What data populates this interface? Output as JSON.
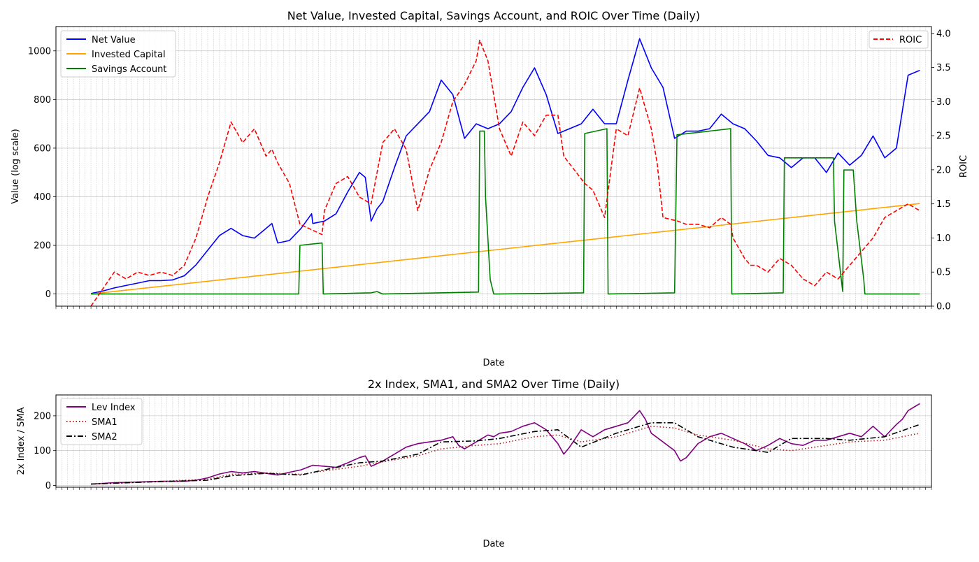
{
  "chart_data": [
    {
      "type": "line",
      "title": "Net Value, Invested Capital, Savings Account, and ROIC Over Time (Daily)",
      "xlabel": "Date",
      "ylabel": "Value (log scale)",
      "ylabel_right": "ROIC",
      "xlim": [
        1947,
        2022
      ],
      "ylim": [
        -50,
        1100
      ],
      "ylim_right": [
        0,
        4.1
      ],
      "yticks": [
        0,
        200,
        400,
        600,
        800,
        1000
      ],
      "yticks_right": [
        0.0,
        0.5,
        1.0,
        1.5,
        2.0,
        2.5,
        3.0,
        3.5,
        4.0
      ],
      "ytick_labels_right": [
        "0.0",
        "0.5",
        "1.0",
        "1.5",
        "2.0",
        "2.5",
        "3.0",
        "3.5",
        "4.0"
      ],
      "grid": true,
      "legend_left_placement": "upper-left",
      "legend_right_placement": "upper-right",
      "series": [
        {
          "name": "Net Value",
          "axis": "left",
          "color": "#0000ff",
          "style": "solid",
          "x": [
            1950,
            1951,
            1952,
            1953,
            1954,
            1955,
            1956,
            1957,
            1958,
            1959,
            1960,
            1961,
            1962,
            1963,
            1964,
            1965,
            1965.5,
            1966,
            1967,
            1968,
            1968.9,
            1969,
            1970,
            1971,
            1972,
            1973,
            1973.5,
            1974,
            1974.5,
            1975,
            1976,
            1977,
            1978,
            1979,
            1980,
            1981,
            1982,
            1983,
            1984,
            1985,
            1986,
            1987,
            1988,
            1989,
            1990,
            1991,
            1992,
            1993,
            1994,
            1995,
            1996,
            1997,
            1998,
            1999,
            2000,
            2001,
            2002,
            2003,
            2004,
            2005,
            2006,
            2007,
            2008,
            2009,
            2010,
            2011,
            2012,
            2013,
            2014,
            2015,
            2016,
            2017,
            2018,
            2019,
            2020,
            2021
          ],
          "y": [
            2,
            12,
            25,
            35,
            45,
            55,
            55,
            58,
            75,
            120,
            180,
            240,
            270,
            240,
            230,
            270,
            290,
            210,
            220,
            270,
            330,
            290,
            300,
            330,
            420,
            500,
            480,
            300,
            350,
            380,
            520,
            650,
            700,
            750,
            880,
            820,
            640,
            700,
            680,
            700,
            750,
            850,
            930,
            820,
            660,
            680,
            700,
            760,
            700,
            700,
            880,
            1050,
            930,
            850,
            640,
            670,
            670,
            680,
            740,
            700,
            680,
            630,
            570,
            560,
            520,
            560,
            560,
            500,
            580,
            530,
            570,
            650,
            560,
            600,
            900,
            920
          ]
        },
        {
          "name": "Invested Capital",
          "axis": "left",
          "color": "#ffa500",
          "style": "solid",
          "x": [
            1950,
            2021
          ],
          "y": [
            0,
            372
          ]
        },
        {
          "name": "Savings Account",
          "axis": "left",
          "color": "#008000",
          "style": "solid",
          "x": [
            1950,
            1967.8,
            1967.9,
            1969.8,
            1969.9,
            1974,
            1974.5,
            1975,
            1983.2,
            1983.3,
            1983.7,
            1983.8,
            1984.2,
            1984.5,
            1985,
            1992.2,
            1992.3,
            1994.2,
            1994.3,
            2000,
            2000.2,
            2004.8,
            2004.9,
            2009.3,
            2009.4,
            2013.6,
            2013.7,
            2014.4,
            2014.5,
            2015.3,
            2015.6,
            2016.2,
            2016.3,
            2016.7,
            2016.8,
            2017.2,
            2017.5,
            2021
          ],
          "y": [
            0,
            0,
            200,
            210,
            0,
            5,
            10,
            0,
            8,
            670,
            670,
            400,
            60,
            0,
            0,
            5,
            660,
            680,
            0,
            5,
            655,
            680,
            0,
            5,
            560,
            560,
            300,
            10,
            510,
            510,
            300,
            60,
            0,
            0,
            0,
            0,
            0,
            0
          ]
        },
        {
          "name": "ROIC",
          "axis": "right",
          "color": "#ff0000",
          "style": "dashed",
          "x": [
            1950,
            1951,
            1952,
            1953,
            1954,
            1955,
            1956,
            1957,
            1958,
            1959,
            1960,
            1961,
            1962,
            1963,
            1964,
            1965,
            1965.5,
            1966,
            1967,
            1967.9,
            1969.8,
            1970,
            1971,
            1972,
            1973,
            1974,
            1975,
            1976,
            1977,
            1978,
            1979,
            1980,
            1980.5,
            1981,
            1982,
            1983,
            1983.3,
            1984,
            1985,
            1986,
            1987,
            1988,
            1989,
            1990,
            1990.5,
            1992.3,
            1993,
            1994,
            1995,
            1996,
            1997,
            1998,
            1998.5,
            1999,
            2000.2,
            2001,
            2002,
            2003,
            2004,
            2004.8,
            2005,
            2006,
            2006.5,
            2007,
            2008,
            2009,
            2010,
            2011,
            2012,
            2013,
            2014,
            2015,
            2016,
            2017,
            2018,
            2019,
            2020,
            2021
          ],
          "y": [
            0.0,
            0.25,
            0.5,
            0.4,
            0.5,
            0.45,
            0.5,
            0.45,
            0.6,
            1.0,
            1.6,
            2.1,
            2.7,
            2.4,
            2.6,
            2.2,
            2.3,
            2.1,
            1.8,
            1.2,
            1.05,
            1.4,
            1.8,
            1.9,
            1.6,
            1.5,
            2.4,
            2.6,
            2.3,
            1.4,
            2.0,
            2.4,
            2.7,
            3.0,
            3.25,
            3.6,
            3.9,
            3.6,
            2.6,
            2.2,
            2.7,
            2.5,
            2.8,
            2.8,
            2.2,
            1.8,
            1.7,
            1.3,
            2.6,
            2.5,
            3.2,
            2.6,
            2.1,
            1.3,
            1.25,
            1.2,
            1.2,
            1.15,
            1.3,
            1.2,
            1.0,
            0.7,
            0.6,
            0.6,
            0.5,
            0.7,
            0.6,
            0.4,
            0.3,
            0.5,
            0.4,
            0.6,
            0.8,
            1.0,
            1.3,
            1.4,
            1.5,
            1.4
          ]
        }
      ]
    },
    {
      "type": "line",
      "title": "2x Index, SMA1, and SMA2 Over Time (Daily)",
      "xlabel": "Date",
      "ylabel": "2x Index / SMA",
      "xlim": [
        1947,
        2022
      ],
      "ylim": [
        -5,
        260
      ],
      "yticks": [
        0,
        100,
        200
      ],
      "grid": true,
      "legend_placement": "upper-left",
      "series": [
        {
          "name": "Lev Index",
          "color": "#800080",
          "style": "solid",
          "x": [
            1950,
            1952,
            1954,
            1956,
            1958,
            1959,
            1960,
            1961,
            1962,
            1963,
            1964,
            1965,
            1966,
            1967,
            1968,
            1969,
            1970,
            1971,
            1972,
            1973,
            1973.5,
            1974,
            1975,
            1976,
            1977,
            1978,
            1979,
            1980,
            1981,
            1981.5,
            1982,
            1983,
            1984,
            1984.5,
            1985,
            1986,
            1987,
            1988,
            1989,
            1990,
            1990.5,
            1991,
            1992,
            1993,
            1994,
            1995,
            1996,
            1997,
            1997.5,
            1998,
            1999,
            2000,
            2000.5,
            2001,
            2002,
            2003,
            2004,
            2005,
            2006,
            2007,
            2008,
            2009,
            2010,
            2011,
            2012,
            2013,
            2014,
            2015,
            2016,
            2017,
            2018,
            2019,
            2019.5,
            2020,
            2021
          ],
          "y": [
            4,
            8,
            10,
            12,
            12,
            15,
            22,
            33,
            40,
            36,
            40,
            35,
            30,
            38,
            45,
            58,
            55,
            52,
            65,
            80,
            85,
            55,
            70,
            90,
            110,
            120,
            125,
            130,
            140,
            115,
            105,
            125,
            145,
            140,
            150,
            155,
            170,
            180,
            160,
            120,
            90,
            110,
            160,
            140,
            160,
            170,
            180,
            215,
            190,
            150,
            125,
            100,
            70,
            80,
            120,
            140,
            150,
            135,
            120,
            100,
            115,
            135,
            120,
            115,
            130,
            130,
            140,
            150,
            140,
            170,
            140,
            175,
            190,
            215,
            235
          ]
        },
        {
          "name": "SMA1",
          "color": "#b22222",
          "style": "dotted",
          "x": [
            1950,
            1955,
            1960,
            1962,
            1965,
            1968,
            1970,
            1973,
            1975,
            1978,
            1980,
            1983,
            1985,
            1988,
            1990,
            1992,
            1995,
            1998,
            2000,
            2002,
            2005,
            2008,
            2010,
            2013,
            2015,
            2018,
            2021
          ],
          "y": [
            4,
            10,
            18,
            32,
            36,
            32,
            42,
            55,
            68,
            85,
            105,
            115,
            120,
            140,
            145,
            125,
            140,
            170,
            165,
            145,
            130,
            105,
            100,
            115,
            125,
            130,
            150
          ]
        },
        {
          "name": "SMA2",
          "color": "#000000",
          "style": "dashdot",
          "x": [
            1950,
            1955,
            1960,
            1962,
            1965,
            1968,
            1970,
            1973,
            1975,
            1978,
            1980,
            1983,
            1985,
            1988,
            1990,
            1992,
            1995,
            1998,
            2000,
            2002,
            2005,
            2008,
            2010,
            2013,
            2015,
            2018,
            2021
          ],
          "y": [
            4,
            10,
            15,
            28,
            35,
            30,
            45,
            65,
            70,
            90,
            125,
            128,
            135,
            155,
            160,
            110,
            150,
            180,
            180,
            140,
            110,
            95,
            135,
            135,
            130,
            140,
            175
          ]
        }
      ]
    }
  ]
}
